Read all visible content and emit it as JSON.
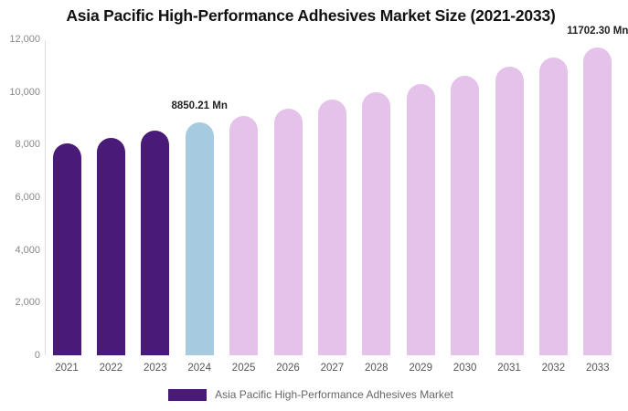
{
  "chart_data": {
    "type": "bar",
    "title": "Asia Pacific High-Performance Adhesives Market Size (2021-2033)",
    "unit": "Mn",
    "categories": [
      "2021",
      "2022",
      "2023",
      "2024",
      "2025",
      "2026",
      "2027",
      "2028",
      "2029",
      "2030",
      "2031",
      "2032",
      "2033"
    ],
    "values": [
      8050,
      8250,
      8530,
      8850.21,
      9090,
      9360,
      9710,
      9990,
      10300,
      10610,
      10960,
      11310,
      11702.3
    ],
    "point_roles": [
      "historical",
      "historical",
      "historical",
      "highlight",
      "forecast",
      "forecast",
      "forecast",
      "forecast",
      "forecast",
      "forecast",
      "forecast",
      "forecast",
      "forecast"
    ],
    "colors": {
      "historical": "#4A1A78",
      "highlight": "#A6CADF",
      "forecast": "#E4C2E9"
    },
    "xlabel": "",
    "ylabel": "",
    "ylim": [
      0,
      12000
    ],
    "y_ticks": [
      "12,000",
      "10,000",
      "8,000",
      "6,000",
      "4,000",
      "2,000",
      "0"
    ],
    "grid": false,
    "legend_position": "bottom",
    "legend": [
      {
        "label": "Asia Pacific High-Performance Adhesives Market",
        "color": "#4A1A78"
      }
    ],
    "annotations": [
      {
        "year": "2024",
        "text": "8850.21 Mn"
      },
      {
        "year": "2033",
        "text": "11702.30 Mn"
      }
    ]
  }
}
